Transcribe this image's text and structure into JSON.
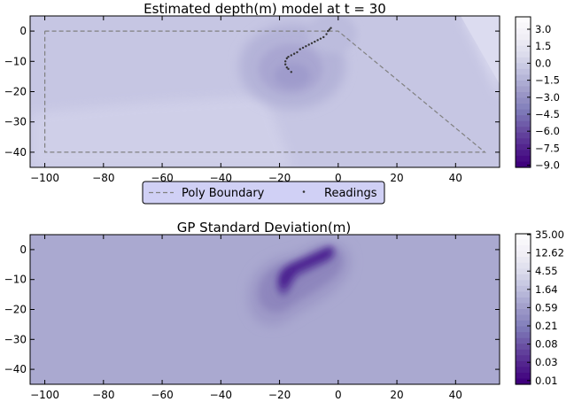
{
  "chart_data": [
    {
      "type": "heatmap",
      "title": "Estimated depth(m) model at t = 30",
      "xlim": [
        -105,
        55
      ],
      "ylim": [
        -45,
        5
      ],
      "xticks": [
        -100,
        -80,
        -60,
        -40,
        -20,
        0,
        20,
        40
      ],
      "yticks": [
        0,
        -10,
        -20,
        -30,
        -40
      ],
      "grid": false,
      "colormap": "Purples",
      "colorbar": {
        "ticks": [
          "3.0",
          "1.5",
          "0.0",
          "−1.5",
          "−3.0",
          "−4.5",
          "−6.0",
          "−7.5",
          "−9.0"
        ],
        "min": -9.0,
        "max": 4.0
      },
      "legend": {
        "placement": "below",
        "entries": [
          "Poly Boundary",
          "Readings"
        ]
      },
      "boundary": {
        "name": "Poly Boundary",
        "x": [
          -100,
          0,
          50,
          -100,
          -100
        ],
        "y": [
          0,
          0,
          -40,
          -40,
          0
        ]
      },
      "readings": {
        "name": "Readings",
        "x": [
          -2.5,
          -3,
          -3.5,
          -4,
          -5,
          -6,
          -7,
          -8,
          -9,
          -10,
          -11,
          -12,
          -13,
          -14,
          -15,
          -16,
          -17,
          -17.5,
          -18,
          -18,
          -17.5,
          -17,
          -16
        ],
        "y": [
          1,
          0.5,
          0,
          -1,
          -2,
          -2.5,
          -3,
          -3.5,
          -4,
          -4.5,
          -5,
          -5.5,
          -6,
          -7,
          -7.5,
          -8,
          -8.5,
          -9,
          -10,
          -11,
          -12,
          -12.5,
          -13.5
        ]
      }
    },
    {
      "type": "heatmap",
      "title": "GP Standard Deviation(m)",
      "xlim": [
        -105,
        55
      ],
      "ylim": [
        -45,
        5
      ],
      "xticks": [
        -100,
        -80,
        -60,
        -40,
        -20,
        0,
        20,
        40
      ],
      "yticks": [
        0,
        -10,
        -20,
        -30,
        -40
      ],
      "grid": false,
      "colormap": "Purples (log)",
      "colorbar": {
        "ticks": [
          "35.00",
          "12.62",
          "4.55",
          "1.64",
          "0.59",
          "0.21",
          "0.08",
          "0.03",
          "0.01"
        ],
        "scale": "log"
      }
    }
  ]
}
